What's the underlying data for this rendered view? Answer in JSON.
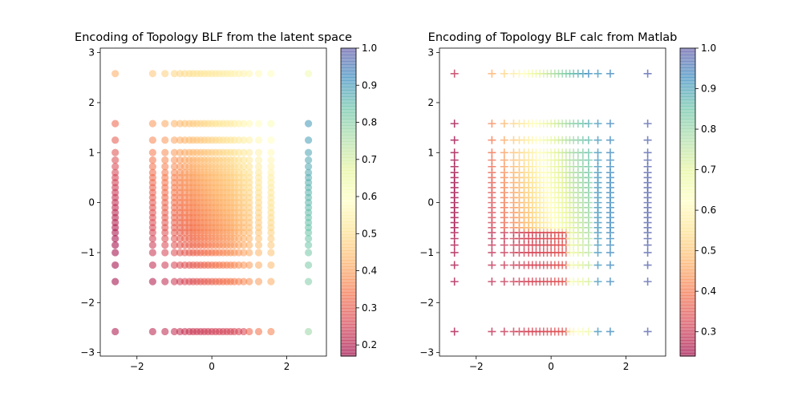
{
  "chart_data": [
    {
      "type": "scatter",
      "title": "Encoding of Topology BLF from the latent space",
      "xlabel": "",
      "ylabel": "",
      "marker": "circle",
      "xlim": [
        -2.98,
        3.06
      ],
      "ylim": [
        -3.07,
        3.09
      ],
      "xticks": [
        -2,
        0,
        2
      ],
      "yticks": [
        -3,
        -2,
        -1,
        0,
        1,
        2,
        3
      ],
      "x_tick_labels": [
        "−2",
        "0",
        "2"
      ],
      "y_tick_labels": [
        "−3",
        "−2",
        "−1",
        "0",
        "1",
        "2",
        "3"
      ],
      "grid_values": [
        -2.58,
        -1.58,
        -1.25,
        -1.0,
        -0.85,
        -0.72,
        -0.6,
        -0.5,
        -0.4,
        -0.3,
        -0.2,
        -0.1,
        0.0,
        0.1,
        0.2,
        0.3,
        0.4,
        0.5,
        0.6,
        0.72,
        0.85,
        1.0,
        1.25,
        1.58,
        2.58
      ],
      "color_value_function": "c = 0.40 + 0.07*x + 0.06*y, clamped to colorbar range; right column x=2.58 shows ~0.8-1.0",
      "colorbar": {
        "vmin": 0.17,
        "vmax": 1.0,
        "ticks": [
          0.2,
          0.3,
          0.4,
          0.5,
          0.6,
          0.7,
          0.8,
          0.9,
          1.0
        ],
        "tick_labels": [
          "0.2",
          "0.3",
          "0.4",
          "0.5",
          "0.6",
          "0.7",
          "0.8",
          "0.9",
          "1.0"
        ],
        "colormap": "Spectral"
      },
      "grid": false
    },
    {
      "type": "scatter",
      "title": "Encoding of Topology BLF calc from Matlab",
      "xlabel": "",
      "ylabel": "",
      "marker": "plus",
      "xlim": [
        -2.98,
        3.06
      ],
      "ylim": [
        -3.07,
        3.09
      ],
      "xticks": [
        -2,
        0,
        2
      ],
      "yticks": [
        -3,
        -2,
        -1,
        0,
        1,
        2,
        3
      ],
      "x_tick_labels": [
        "−2",
        "0",
        "2"
      ],
      "y_tick_labels": [
        "−3",
        "−2",
        "−1",
        "0",
        "1",
        "2",
        "3"
      ],
      "grid_values": [
        -2.58,
        -1.58,
        -1.25,
        -1.0,
        -0.85,
        -0.72,
        -0.6,
        -0.5,
        -0.4,
        -0.3,
        -0.2,
        -0.1,
        0.0,
        0.1,
        0.2,
        0.3,
        0.4,
        0.5,
        0.6,
        0.72,
        0.85,
        1.0,
        1.25,
        1.58,
        2.58
      ],
      "color_value_function": "c = 0.62 + 0.18*x + 0.05*y; points with y < -0.5 and x < 0.5 are ~0.25-0.35",
      "colorbar": {
        "vmin": 0.24,
        "vmax": 1.0,
        "ticks": [
          0.3,
          0.4,
          0.5,
          0.6,
          0.7,
          0.8,
          0.9,
          1.0
        ],
        "tick_labels": [
          "0.3",
          "0.4",
          "0.5",
          "0.6",
          "0.7",
          "0.8",
          "0.9",
          "1.0"
        ],
        "colormap": "Spectral"
      },
      "grid": false
    }
  ]
}
